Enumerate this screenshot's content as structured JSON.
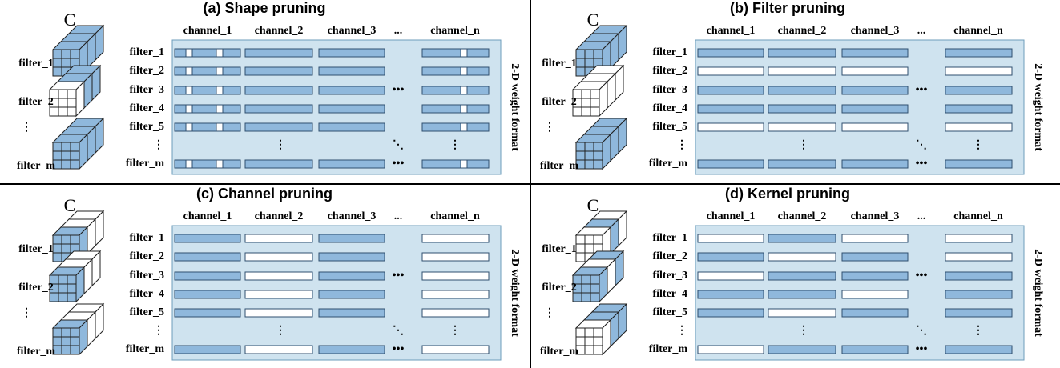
{
  "panels": [
    {
      "title": "(a) Shape pruning",
      "cube_label": "C",
      "cube_filters": [
        "filter_1",
        "filter_2",
        "⋮",
        "filter_m"
      ],
      "channels": [
        "channel_1",
        "channel_2",
        "channel_3",
        "...",
        "channel_n"
      ],
      "filters": [
        "filter_1",
        "filter_2",
        "filter_3",
        "filter_4",
        "filter_5",
        "⋮",
        "filter_m"
      ],
      "row_ellipsis": "•••",
      "gap_dots": [
        "⋮",
        "⋱",
        "⋮"
      ],
      "side_label": "2-D weight format"
    },
    {
      "title": "(b) Filter pruning",
      "cube_label": "C",
      "cube_filters": [
        "filter_1",
        "filter_2",
        "⋮",
        "filter_m"
      ],
      "channels": [
        "channel_1",
        "channel_2",
        "channel_3",
        "...",
        "channel_n"
      ],
      "filters": [
        "filter_1",
        "filter_2",
        "filter_3",
        "filter_4",
        "filter_5",
        "⋮",
        "filter_m"
      ],
      "row_ellipsis": "•••",
      "gap_dots": [
        "⋮",
        "⋱",
        "⋮"
      ],
      "side_label": "2-D weight format"
    },
    {
      "title": "(c) Channel pruning",
      "cube_label": "C",
      "cube_filters": [
        "filter_1",
        "filter_2",
        "⋮",
        "filter_m"
      ],
      "channels": [
        "channel_1",
        "channel_2",
        "channel_3",
        "...",
        "channel_n"
      ],
      "filters": [
        "filter_1",
        "filter_2",
        "filter_3",
        "filter_4",
        "filter_5",
        "⋮",
        "filter_m"
      ],
      "row_ellipsis": "•••",
      "gap_dots": [
        "⋮",
        "⋱",
        "⋮"
      ],
      "side_label": "2-D weight format"
    },
    {
      "title": "(d) Kernel pruning",
      "cube_label": "C",
      "cube_filters": [
        "filter_1",
        "filter_2",
        "⋮",
        "filter_m"
      ],
      "channels": [
        "channel_1",
        "channel_2",
        "channel_3",
        "...",
        "channel_n"
      ],
      "filters": [
        "filter_1",
        "filter_2",
        "filter_3",
        "filter_4",
        "filter_5",
        "⋮",
        "filter_m"
      ],
      "row_ellipsis": "•••",
      "gap_dots": [
        "⋮",
        "⋱",
        "⋮"
      ],
      "side_label": "2-D weight format"
    }
  ]
}
